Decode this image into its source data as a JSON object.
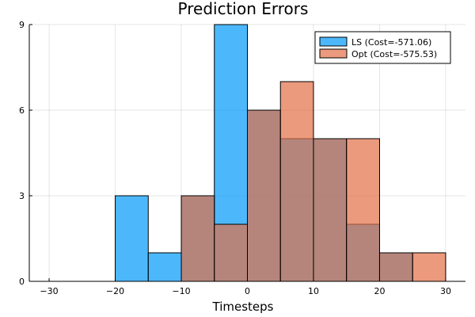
{
  "chart_data": {
    "type": "bar",
    "title": "Prediction Errors",
    "xlabel": "Timesteps",
    "ylabel": "",
    "xlim": [
      -33,
      33
    ],
    "ylim": [
      0,
      9
    ],
    "xticks": [
      -30,
      -20,
      -10,
      0,
      10,
      20,
      30
    ],
    "yticks": [
      0,
      3,
      6,
      9
    ],
    "grid": true,
    "legend_position": "top-right",
    "bin_edges": [
      -20,
      -15,
      -10,
      -5,
      0,
      5,
      10,
      15,
      20,
      25,
      30
    ],
    "series": [
      {
        "name": "LS (Cost=-571.06)",
        "color": "#009AFA",
        "values": [
          3,
          1,
          3,
          9,
          6,
          5,
          5,
          2,
          1,
          0
        ]
      },
      {
        "name": "Opt (Cost=-575.53)",
        "color": "#E26F46",
        "values": [
          0,
          0,
          3,
          2,
          6,
          7,
          5,
          5,
          1,
          1
        ]
      }
    ]
  }
}
